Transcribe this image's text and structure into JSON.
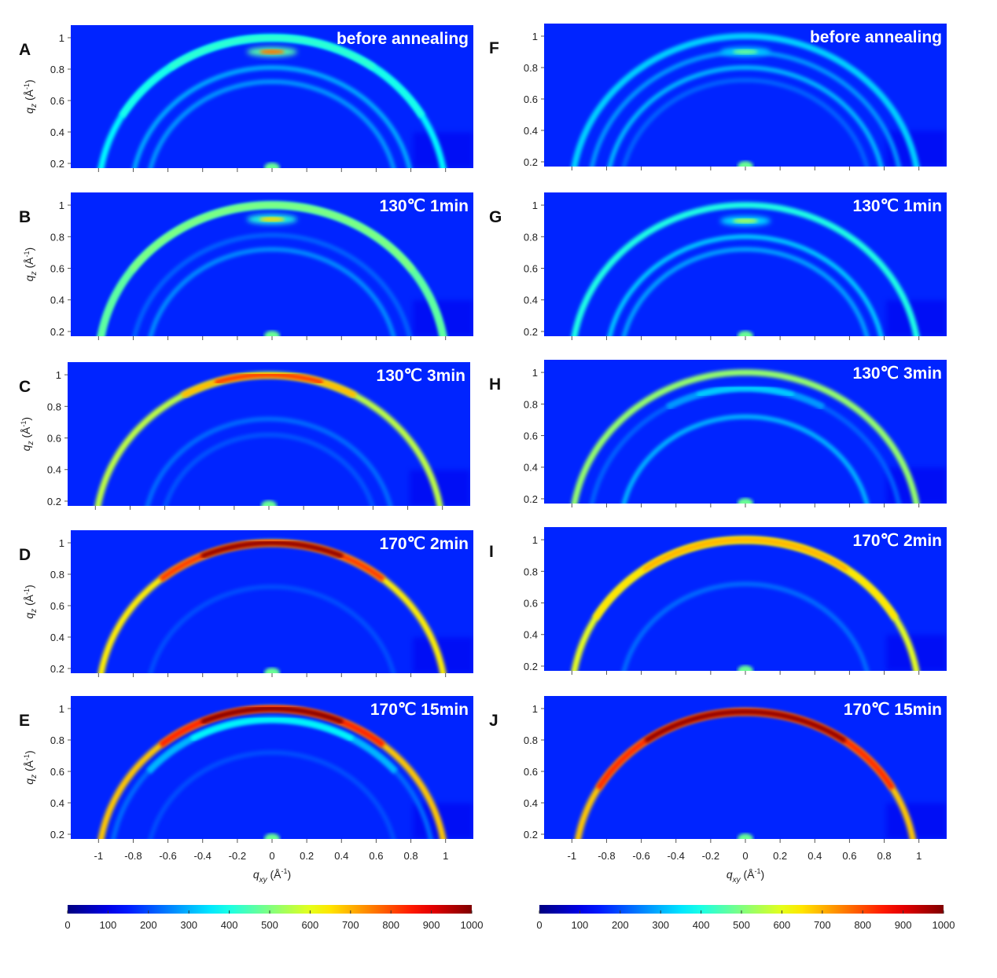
{
  "chart_data": {
    "type": "heatmap",
    "colormap": "jet",
    "xlabel": "q_xy (Å^-1)",
    "ylabel": "q_z (Å^-1)",
    "xlabel_parts": {
      "symbol": "q",
      "sub": "xy",
      "unit": " (Å",
      "sup": "-1",
      "close": ")"
    },
    "ylabel_parts": {
      "symbol": "q",
      "sub": "z",
      "unit": " (Å",
      "sup": "-1",
      "close": ")"
    },
    "xlim": [
      -1.16,
      1.16
    ],
    "ylim": [
      0.17,
      1.08
    ],
    "x_ticks": [
      "-1",
      "-0.8",
      "-0.6",
      "-0.4",
      "-0.2",
      "0",
      "0.2",
      "0.4",
      "0.6",
      "0.8",
      "1"
    ],
    "y_ticks": [
      "0.2",
      "0.4",
      "0.6",
      "0.8",
      "1"
    ],
    "colorbar": {
      "range": [
        0,
        1000
      ],
      "ticks": [
        "0",
        "100",
        "200",
        "300",
        "400",
        "500",
        "600",
        "700",
        "800",
        "900",
        "1000"
      ]
    },
    "background_intensity": 160,
    "beam_spot": {
      "qxy": 0,
      "qz": 0.18,
      "intensity": 480
    },
    "panels": [
      {
        "letter": "A",
        "title": "before annealing",
        "rings": [
          {
            "q": 1.0,
            "i": 370,
            "top": 420,
            "span": 60
          },
          {
            "q": 0.81,
            "i": 290
          },
          {
            "q": 0.72,
            "i": 270
          }
        ],
        "spot": {
          "qz": 0.91,
          "i": 760
        }
      },
      {
        "letter": "B",
        "title": "130℃ 1min",
        "rings": [
          {
            "q": 1.0,
            "i": 440,
            "top": 500,
            "span": 90
          },
          {
            "q": 0.81,
            "i": 220
          },
          {
            "q": 0.72,
            "i": 260
          }
        ],
        "spot": {
          "qz": 0.91,
          "i": 660
        }
      },
      {
        "letter": "C",
        "title": "130℃ 3min",
        "rings": [
          {
            "q": 1.0,
            "i": 560,
            "top": 820,
            "span": 30
          },
          {
            "q": 0.72,
            "i": 230
          },
          {
            "q": 0.62,
            "i": 205
          }
        ]
      },
      {
        "letter": "D",
        "title": "170℃ 2min",
        "rings": [
          {
            "q": 1.0,
            "i": 640,
            "top": 990,
            "span": 40
          },
          {
            "q": 0.72,
            "i": 200
          }
        ]
      },
      {
        "letter": "E",
        "title": "170℃ 15min",
        "rings": [
          {
            "q": 1.0,
            "i": 680,
            "top": 1000,
            "span": 40
          },
          {
            "q": 0.93,
            "i": 230,
            "top": 380,
            "span": 50
          },
          {
            "q": 0.72,
            "i": 200
          }
        ]
      },
      {
        "letter": "F",
        "title": "before annealing",
        "rings": [
          {
            "q": 1.0,
            "i": 330
          },
          {
            "q": 0.9,
            "i": 270
          },
          {
            "q": 0.8,
            "i": 300
          },
          {
            "q": 0.72,
            "i": 220
          }
        ],
        "spot": {
          "qz": 0.9,
          "i": 480
        }
      },
      {
        "letter": "G",
        "title": "130℃ 1min",
        "rings": [
          {
            "q": 1.0,
            "i": 400
          },
          {
            "q": 0.8,
            "i": 320
          },
          {
            "q": 0.72,
            "i": 280
          }
        ],
        "spot": {
          "qz": 0.9,
          "i": 540
        }
      },
      {
        "letter": "H",
        "title": "130℃ 3min",
        "rings": [
          {
            "q": 1.0,
            "i": 520
          },
          {
            "q": 0.9,
            "i": 220,
            "top": 330,
            "span": 30
          },
          {
            "q": 0.72,
            "i": 300
          }
        ]
      },
      {
        "letter": "I",
        "title": "170℃ 2min",
        "rings": [
          {
            "q": 1.0,
            "i": 600,
            "top": 700,
            "span": 60
          },
          {
            "q": 0.72,
            "i": 230
          }
        ]
      },
      {
        "letter": "J",
        "title": "170℃ 15min",
        "rings": [
          {
            "q": 0.98,
            "i": 680,
            "top": 990,
            "span": 60
          }
        ]
      }
    ]
  }
}
